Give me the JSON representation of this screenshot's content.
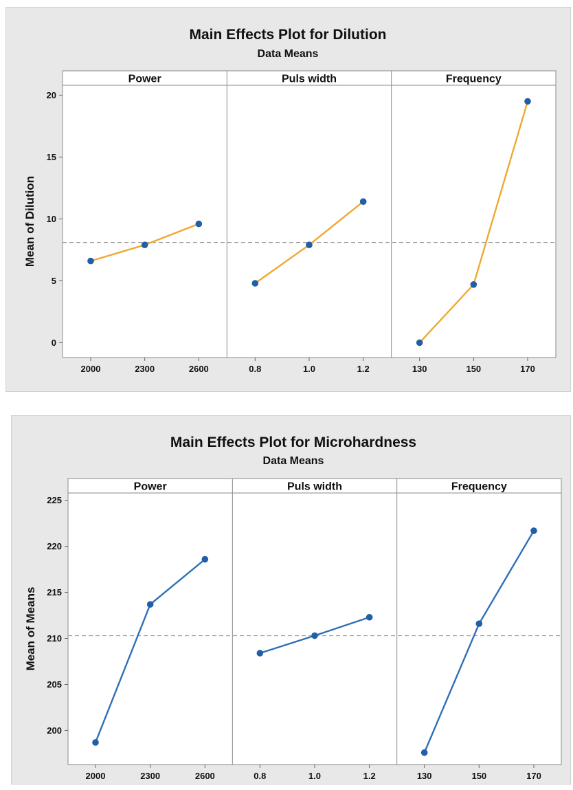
{
  "chart_data": [
    {
      "type": "line",
      "title": "Main Effects Plot for Dilution",
      "subtitle": "Data Means",
      "ylabel": "Mean of Dilution",
      "ylim": [
        -1.2,
        20.8
      ],
      "yticks": [
        "0",
        "5",
        "10",
        "15",
        "20"
      ],
      "reference_line": 8.1,
      "line_color": "#f0a830",
      "marker_color": "#1f5fa8",
      "grid": false,
      "panels": [
        {
          "factor": "Power",
          "x": [
            "2000",
            "2300",
            "2600"
          ],
          "values": [
            6.6,
            7.9,
            9.6
          ]
        },
        {
          "factor": "Puls width",
          "x": [
            "0.8",
            "1.0",
            "1.2"
          ],
          "values": [
            4.8,
            7.9,
            11.4
          ]
        },
        {
          "factor": "Frequency",
          "x": [
            "130",
            "150",
            "170"
          ],
          "values": [
            0.0,
            4.7,
            19.5
          ]
        }
      ]
    },
    {
      "type": "line",
      "title": "Main Effects Plot for Microhardness",
      "subtitle": "Data Means",
      "ylabel": "Mean of Means",
      "ylim": [
        196.3,
        225.8
      ],
      "yticks": [
        "200",
        "205",
        "210",
        "215",
        "220",
        "225"
      ],
      "reference_line": 210.3,
      "line_color": "#2f6fb8",
      "marker_color": "#1f5fa8",
      "grid": false,
      "panels": [
        {
          "factor": "Power",
          "x": [
            "2000",
            "2300",
            "2600"
          ],
          "values": [
            198.7,
            213.7,
            218.6
          ]
        },
        {
          "factor": "Puls width",
          "x": [
            "0.8",
            "1.0",
            "1.2"
          ],
          "values": [
            208.4,
            210.3,
            212.3
          ]
        },
        {
          "factor": "Frequency",
          "x": [
            "130",
            "150",
            "170"
          ],
          "values": [
            197.6,
            211.6,
            221.7
          ]
        }
      ]
    }
  ]
}
